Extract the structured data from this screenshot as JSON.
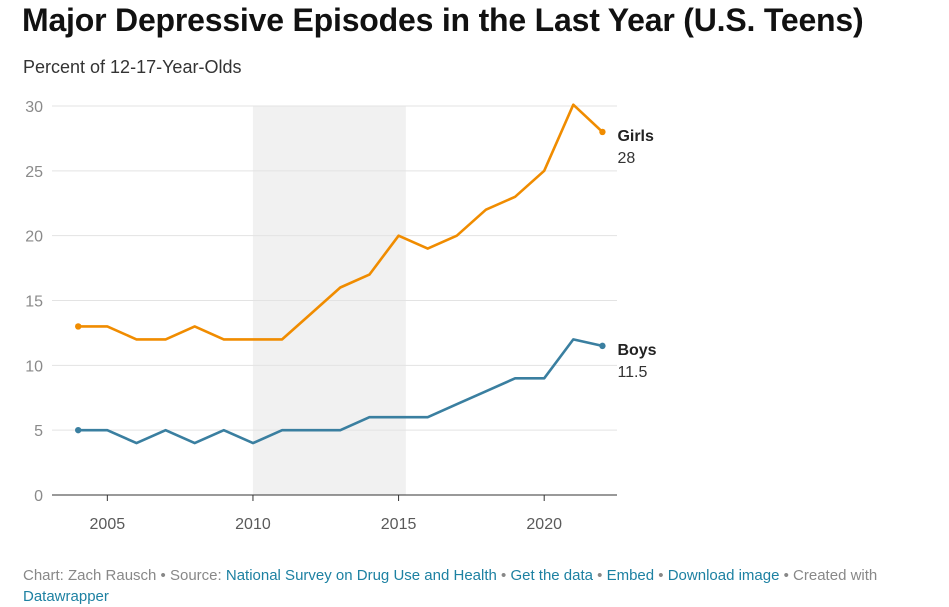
{
  "title": "Major Depressive Episodes in the Last Year (U.S. Teens)",
  "subtitle": "Percent of 12-17-Year-Olds",
  "footer": {
    "chart_by": "Chart: Zach Rausch",
    "source_prefix": "Source:",
    "source_link": "National Survey on Drug Use and Health",
    "get_data": "Get the data",
    "embed": "Embed",
    "download": "Download image",
    "created_with": "Created with",
    "datawrapper": "Datawrapper"
  },
  "chart_data": {
    "type": "line",
    "x": [
      2004,
      2005,
      2006,
      2007,
      2008,
      2009,
      2010,
      2011,
      2012,
      2013,
      2014,
      2015,
      2016,
      2017,
      2018,
      2019,
      2020,
      2021,
      2022
    ],
    "series": [
      {
        "name": "Girls",
        "color": "#f08c00",
        "values": [
          13,
          13,
          12,
          12,
          13,
          12,
          12,
          12,
          14,
          16,
          17,
          20,
          19,
          20,
          22,
          23,
          25,
          30.1,
          28
        ],
        "end_label": "28"
      },
      {
        "name": "Boys",
        "color": "#3a7fa0",
        "values": [
          5,
          5,
          4,
          5,
          4,
          5,
          4,
          5,
          5,
          5,
          6,
          6,
          6,
          7,
          8,
          9,
          9,
          12,
          11.5
        ],
        "end_label": "11.5"
      }
    ],
    "xlim": [
      2003.1,
      2022.5
    ],
    "ylim": [
      0,
      30
    ],
    "yticks": [
      "0",
      "5",
      "10",
      "15",
      "20",
      "25",
      "30"
    ],
    "xticks": [
      "2005",
      "2010",
      "2015",
      "2020"
    ],
    "highlight_range": [
      2010,
      2015.25
    ],
    "highlight_color": "#f1f1f1",
    "grid": true
  }
}
